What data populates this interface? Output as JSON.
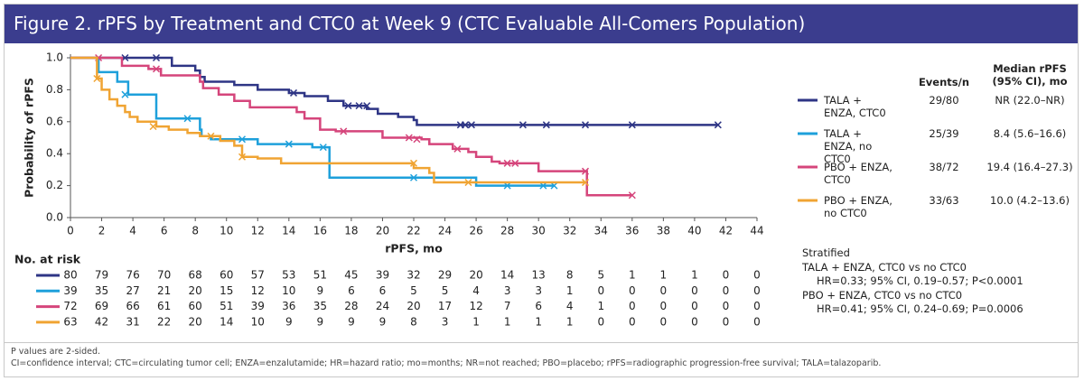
{
  "header": {
    "title": "Figure 2. rPFS by Treatment and CTC0 at Week 9 (CTC Evaluable All-Comers Population)"
  },
  "chart_data": {
    "type": "km",
    "x_label": "rPFS, mo",
    "y_label": "Probability of rPFS",
    "xlim": [
      0,
      44
    ],
    "xticks": [
      0,
      2,
      4,
      6,
      8,
      10,
      12,
      14,
      16,
      18,
      20,
      22,
      24,
      26,
      28,
      30,
      32,
      34,
      36,
      38,
      40,
      42,
      44
    ],
    "ylim": [
      0,
      1
    ],
    "yticks": [
      {
        "value": 0,
        "label": "0.0"
      },
      {
        "value": 0.2,
        "label": "0.2"
      },
      {
        "value": 0.4,
        "label": "0.4"
      },
      {
        "value": 0.6,
        "label": "0.6"
      },
      {
        "value": 0.8,
        "label": "0.8"
      },
      {
        "value": 1,
        "label": "1.0"
      }
    ],
    "legend_headers": {
      "events": "Events/n",
      "median": [
        "Median rPFS",
        "(95% CI), mo"
      ]
    },
    "series": [
      {
        "name": "TALA + ENZA, CTC0",
        "color": "#2e3585",
        "events": "29/80",
        "median": "NR (22.0–NR)",
        "x": [
          0,
          6.5,
          8,
          8.3,
          8.6,
          10.5,
          12,
          14,
          15,
          16.5,
          17.5,
          19,
          19.7,
          21,
          22,
          22.2,
          41.5
        ],
        "values": [
          1,
          0.95,
          0.92,
          0.88,
          0.85,
          0.83,
          0.8,
          0.78,
          0.76,
          0.73,
          0.7,
          0.68,
          0.65,
          0.63,
          0.61,
          0.58,
          0.58
        ],
        "censor_x": [
          3.5,
          5.5,
          14.3,
          17.8,
          18.5,
          19,
          25,
          25.3,
          25.7,
          29,
          30.5,
          33,
          36,
          41.5
        ],
        "censor_y": [
          1,
          1,
          0.78,
          0.7,
          0.7,
          0.7,
          0.58,
          0.58,
          0.58,
          0.58,
          0.58,
          0.58,
          0.58,
          0.58
        ]
      },
      {
        "name": "TALA + ENZA, no CTC0",
        "color": "#1ea0db",
        "events": "25/39",
        "median": "8.4 (5.6–16.6)",
        "x": [
          0,
          1.8,
          3,
          3.7,
          5.5,
          8.3,
          8.4,
          9,
          12,
          15.5,
          16.6,
          26,
          31
        ],
        "values": [
          1,
          0.91,
          0.85,
          0.77,
          0.62,
          0.55,
          0.51,
          0.49,
          0.46,
          0.44,
          0.25,
          0.2,
          0.2
        ],
        "censor_x": [
          3.5,
          7.5,
          11,
          14,
          16.2,
          22,
          28,
          30.3,
          31
        ],
        "censor_y": [
          0.77,
          0.62,
          0.49,
          0.46,
          0.44,
          0.25,
          0.2,
          0.2,
          0.2
        ]
      },
      {
        "name": "PBO + ENZA, CTC0",
        "color": "#d5457b",
        "events": "38/72",
        "median": "19.4 (16.4–27.3)",
        "x": [
          0,
          3.3,
          5,
          5.8,
          8.3,
          8.5,
          9.5,
          10.5,
          11.5,
          14.5,
          15,
          16,
          17,
          20,
          22.5,
          23,
          24.5,
          25.5,
          26,
          27,
          27.5,
          30,
          33.1,
          36
        ],
        "values": [
          1,
          0.95,
          0.93,
          0.89,
          0.85,
          0.81,
          0.77,
          0.73,
          0.69,
          0.66,
          0.62,
          0.55,
          0.54,
          0.5,
          0.49,
          0.46,
          0.43,
          0.41,
          0.38,
          0.35,
          0.34,
          0.29,
          0.14,
          0.14
        ],
        "censor_x": [
          1.8,
          5.5,
          17.5,
          21.7,
          22.2,
          24.8,
          28,
          28.5,
          33,
          36
        ],
        "censor_y": [
          1,
          0.93,
          0.54,
          0.5,
          0.49,
          0.43,
          0.34,
          0.34,
          0.29,
          0.14
        ]
      },
      {
        "name": "PBO + ENZA, no CTC0",
        "color": "#f0a433",
        "events": "33/63",
        "median": "10.0 (4.2–13.6)",
        "x": [
          0,
          1.7,
          2,
          2.5,
          3,
          3.5,
          3.8,
          4.3,
          5.5,
          6.3,
          7.5,
          8.3,
          9.6,
          10.5,
          11,
          12,
          13.5,
          22,
          23,
          23.3,
          33
        ],
        "values": [
          1,
          0.87,
          0.8,
          0.74,
          0.7,
          0.66,
          0.63,
          0.6,
          0.57,
          0.55,
          0.53,
          0.51,
          0.48,
          0.45,
          0.38,
          0.37,
          0.34,
          0.31,
          0.28,
          0.22,
          0.22
        ],
        "censor_x": [
          1.7,
          5.3,
          9,
          11,
          22,
          25.5,
          33
        ],
        "censor_y": [
          0.87,
          0.57,
          0.51,
          0.38,
          0.34,
          0.22,
          0.22
        ]
      }
    ],
    "risk_table": {
      "title": "No. at risk",
      "rows": [
        [
          80,
          79,
          76,
          70,
          68,
          60,
          57,
          53,
          51,
          45,
          39,
          32,
          29,
          20,
          14,
          13,
          8,
          5,
          1,
          1,
          1,
          0,
          0
        ],
        [
          39,
          35,
          27,
          21,
          20,
          15,
          12,
          10,
          9,
          6,
          6,
          5,
          5,
          4,
          3,
          3,
          1,
          0,
          0,
          0,
          0,
          0,
          0
        ],
        [
          72,
          69,
          66,
          61,
          60,
          51,
          39,
          36,
          35,
          28,
          24,
          20,
          17,
          12,
          7,
          6,
          4,
          1,
          0,
          0,
          0,
          0,
          0
        ],
        [
          63,
          42,
          31,
          22,
          20,
          14,
          10,
          9,
          9,
          9,
          9,
          8,
          3,
          1,
          1,
          1,
          1,
          0,
          0,
          0,
          0,
          0,
          0
        ]
      ]
    },
    "stratified": [
      "Stratified",
      "TALA + ENZA, CTC0 vs no CTC0",
      "HR=0.33; 95% CI, 0.19–0.57; P<0.0001",
      "PBO + ENZA, CTC0 vs no CTC0",
      "HR=0.41; 95% CI, 0.24–0.69; P=0.0006"
    ]
  },
  "footnotes": [
    "P values are 2-sided.",
    "CI=confidence interval; CTC=circulating tumor cell; ENZA=enzalutamide; HR=hazard ratio; mo=months; NR=not reached; PBO=placebo; rPFS=radiographic progression-free survival; TALA=talazoparib."
  ]
}
